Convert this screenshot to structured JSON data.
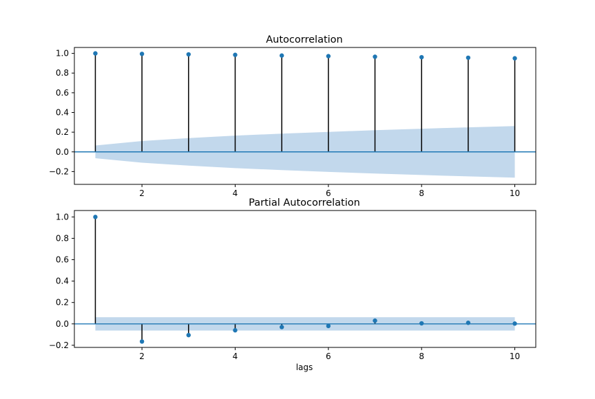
{
  "chart_data": [
    {
      "type": "stem",
      "title": "Autocorrelation",
      "xlabel": "",
      "ylabel": "",
      "x": [
        1,
        2,
        3,
        4,
        5,
        6,
        7,
        8,
        9,
        10
      ],
      "values": [
        1.0,
        0.995,
        0.99,
        0.985,
        0.978,
        0.972,
        0.966,
        0.961,
        0.956,
        0.95
      ],
      "confidence_band": {
        "upper": [
          0.065,
          0.11,
          0.14,
          0.165,
          0.185,
          0.203,
          0.22,
          0.235,
          0.249,
          0.262
        ],
        "lower": [
          -0.065,
          -0.11,
          -0.14,
          -0.165,
          -0.185,
          -0.203,
          -0.22,
          -0.235,
          -0.249,
          -0.262
        ]
      },
      "xlim": [
        0.55,
        10.45
      ],
      "ylim": [
        -0.33,
        1.06
      ],
      "xticks": [
        2,
        4,
        6,
        8,
        10
      ],
      "xtick_labels": [
        "2",
        "4",
        "6",
        "8",
        "10"
      ],
      "yticks": [
        -0.2,
        0.0,
        0.2,
        0.4,
        0.6,
        0.8,
        1.0
      ],
      "ytick_labels": [
        "−0.2",
        "0.0",
        "0.2",
        "0.4",
        "0.6",
        "0.8",
        "1.0"
      ],
      "grid": false
    },
    {
      "type": "stem",
      "title": "Partial Autocorrelation",
      "xlabel": "lags",
      "ylabel": "",
      "x": [
        1,
        2,
        3,
        4,
        5,
        6,
        7,
        8,
        9,
        10
      ],
      "values": [
        1.0,
        -0.165,
        -0.105,
        -0.06,
        -0.03,
        -0.02,
        0.03,
        0.005,
        0.01,
        0.003
      ],
      "confidence_band": {
        "upper": [
          0.062,
          0.062,
          0.062,
          0.062,
          0.062,
          0.062,
          0.062,
          0.062,
          0.062,
          0.062
        ],
        "lower": [
          -0.062,
          -0.062,
          -0.062,
          -0.062,
          -0.062,
          -0.062,
          -0.062,
          -0.062,
          -0.062,
          -0.062
        ]
      },
      "xlim": [
        0.55,
        10.45
      ],
      "ylim": [
        -0.22,
        1.06
      ],
      "xticks": [
        2,
        4,
        6,
        8,
        10
      ],
      "xtick_labels": [
        "2",
        "4",
        "6",
        "8",
        "10"
      ],
      "yticks": [
        -0.2,
        0.0,
        0.2,
        0.4,
        0.6,
        0.8,
        1.0
      ],
      "ytick_labels": [
        "−0.2",
        "0.0",
        "0.2",
        "0.4",
        "0.6",
        "0.8",
        "1.0"
      ],
      "grid": false
    }
  ],
  "colors": {
    "marker": "#1f77b4",
    "zero_line": "#1f77b4",
    "stem": "#000000",
    "band": "#c2d8ec",
    "axes": "#000000"
  }
}
